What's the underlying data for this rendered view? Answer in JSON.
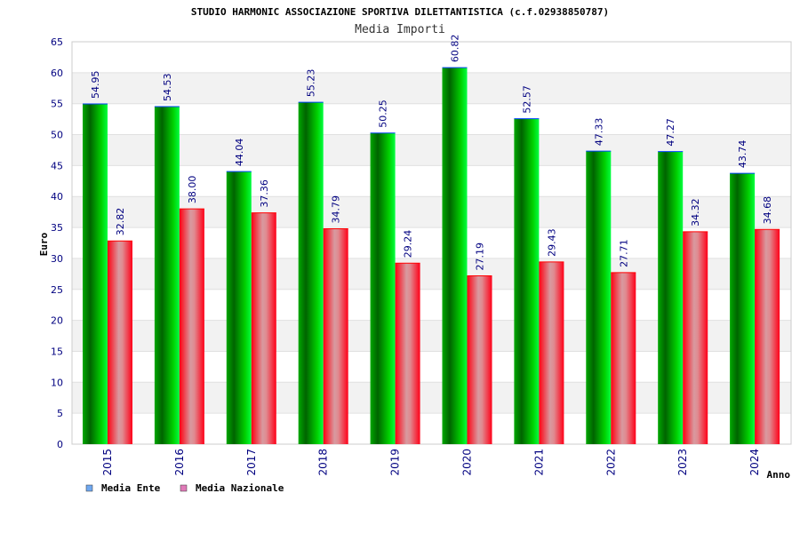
{
  "chart_data": {
    "type": "bar",
    "title": "STUDIO HARMONIC ASSOCIAZIONE SPORTIVA DILETTANTISTICA (c.f.02938850787)",
    "subtitle": "Media Importi",
    "xlabel": "Anno",
    "ylabel": "Euro",
    "ylim": [
      0,
      65
    ],
    "yticks": [
      "0",
      "5",
      "10",
      "15",
      "20",
      "25",
      "30",
      "35",
      "40",
      "45",
      "50",
      "55",
      "60",
      "65"
    ],
    "categories": [
      "2015",
      "2016",
      "2017",
      "2018",
      "2019",
      "2020",
      "2021",
      "2022",
      "2023",
      "2024"
    ],
    "series": [
      {
        "name": "Media Ente",
        "values": [
          54.95,
          54.53,
          44.04,
          55.23,
          50.25,
          60.82,
          52.57,
          47.33,
          47.27,
          43.74
        ],
        "labels": [
          "54.95",
          "54.53",
          "44.04",
          "55.23",
          "50.25",
          "60.82",
          "52.57",
          "47.33",
          "47.27",
          "43.74"
        ],
        "color": "#00c000",
        "legend_color": "#6fa8f0"
      },
      {
        "name": "Media Nazionale",
        "values": [
          32.82,
          38.0,
          37.36,
          34.79,
          29.24,
          27.19,
          29.43,
          27.71,
          34.32,
          34.68
        ],
        "labels": [
          "32.82",
          "38.00",
          "37.36",
          "34.79",
          "29.24",
          "27.19",
          "29.43",
          "27.71",
          "34.32",
          "34.68"
        ],
        "color": "#ff1020",
        "legend_color": "#e07ab8"
      }
    ],
    "grid": true,
    "legend": "bottom-left"
  }
}
